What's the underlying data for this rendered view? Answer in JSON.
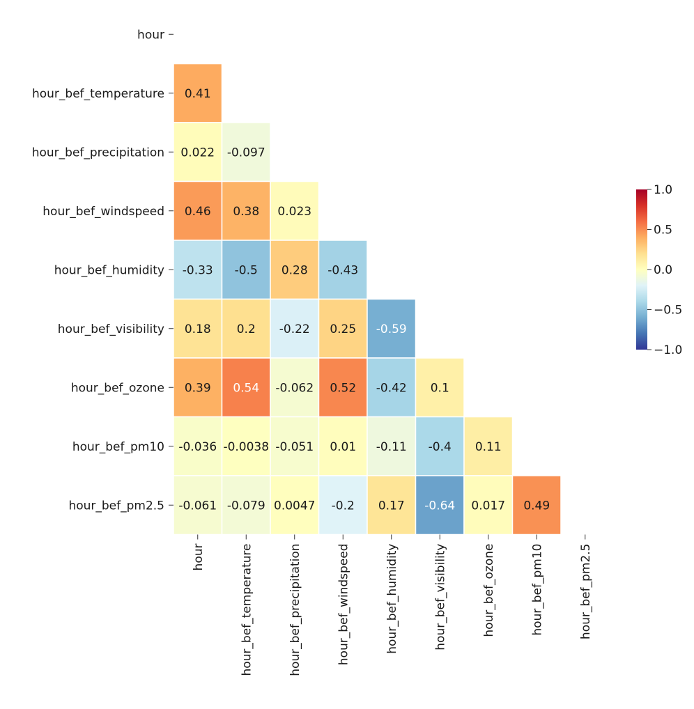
{
  "chart_data": {
    "type": "heatmap",
    "title": "",
    "xlabel": "",
    "ylabel": "",
    "mask": "upper-triangle-including-diagonal",
    "variables": [
      "hour",
      "hour_bef_temperature",
      "hour_bef_precipitation",
      "hour_bef_windspeed",
      "hour_bef_humidity",
      "hour_bef_visibility",
      "hour_bef_ozone",
      "hour_bef_pm10",
      "hour_bef_pm2.5"
    ],
    "matrix": [
      [],
      [
        0.41
      ],
      [
        0.022,
        -0.097
      ],
      [
        0.46,
        0.38,
        0.023
      ],
      [
        -0.33,
        -0.5,
        0.28,
        -0.43
      ],
      [
        0.18,
        0.2,
        -0.22,
        0.25,
        -0.59
      ],
      [
        0.39,
        0.54,
        -0.062,
        0.52,
        -0.42,
        0.1
      ],
      [
        -0.036,
        -0.0038,
        -0.051,
        0.01,
        -0.11,
        -0.4,
        0.11
      ],
      [
        -0.061,
        -0.079,
        0.0047,
        -0.2,
        0.17,
        -0.64,
        0.017,
        0.49
      ]
    ],
    "labels": [
      [],
      [
        "0.41"
      ],
      [
        "0.022",
        "-0.097"
      ],
      [
        "0.46",
        "0.38",
        "0.023"
      ],
      [
        "-0.33",
        "-0.5",
        "0.28",
        "-0.43"
      ],
      [
        "0.18",
        "0.2",
        "-0.22",
        "0.25",
        "-0.59"
      ],
      [
        "0.39",
        "0.54",
        "-0.062",
        "0.52",
        "-0.42",
        "0.1"
      ],
      [
        "-0.036",
        "-0.0038",
        "-0.051",
        "0.01",
        "-0.11",
        "-0.4",
        "0.11"
      ],
      [
        "-0.061",
        "-0.079",
        "0.0047",
        "-0.2",
        "0.17",
        "-0.64",
        "0.017",
        "0.49"
      ]
    ],
    "colormap": "RdYlBu_r",
    "vmin": -1.0,
    "vmax": 1.0,
    "colorbar": {
      "ticks": [
        1.0,
        0.5,
        0.0,
        -0.5,
        -1.0
      ],
      "tick_labels": [
        "1.0",
        "0.5",
        "0.0",
        "−0.5",
        "−1.0"
      ],
      "placement": "right"
    }
  }
}
